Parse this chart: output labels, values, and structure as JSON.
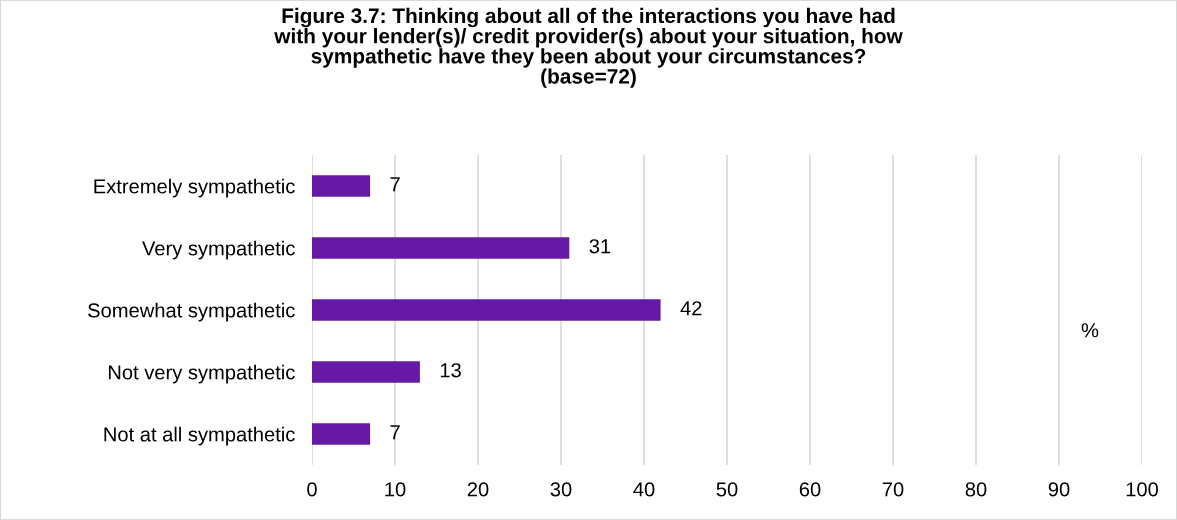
{
  "chart_data": {
    "type": "bar",
    "orientation": "horizontal",
    "title": "Figure 3.7: Thinking about all of the interactions you have had\nwith your lender(s)/ credit provider(s) about your situation, how\nsympathetic have they been about your circumstances?\n(base=72)",
    "categories": [
      "Extremely sympathetic",
      "Very sympathetic",
      "Somewhat sympathetic",
      "Not very sympathetic",
      "Not at all sympathetic"
    ],
    "series": [
      {
        "color": "#6519a5",
        "values": [
          7,
          31,
          42,
          13,
          7
        ]
      }
    ],
    "data_labels": true,
    "xlim": [
      0,
      100
    ],
    "xticks": [
      0,
      10,
      20,
      30,
      40,
      50,
      60,
      70,
      80,
      90,
      100
    ],
    "grid": "x",
    "annotations": [
      "%"
    ]
  }
}
